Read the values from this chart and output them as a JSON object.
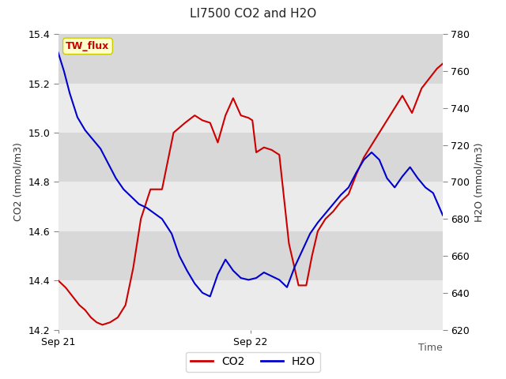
{
  "title": "LI7500 CO2 and H2O",
  "xlabel": "Time",
  "ylabel_left": "CO2 (mmol/m3)",
  "ylabel_right": "H2O (mmol/m3)",
  "co2_ylim": [
    14.2,
    15.4
  ],
  "h2o_ylim": [
    620,
    780
  ],
  "co2_yticks": [
    14.2,
    14.4,
    14.6,
    14.8,
    15.0,
    15.2,
    15.4
  ],
  "h2o_yticks": [
    620,
    640,
    660,
    680,
    700,
    720,
    740,
    760,
    780
  ],
  "xtick_positions": [
    0.0,
    0.5
  ],
  "xtick_labels": [
    "Sep 21",
    "Sep 22"
  ],
  "fig_bg_color": "#ffffff",
  "plot_bg_light": "#ebebeb",
  "plot_bg_dark": "#d8d8d8",
  "co2_color": "#cc0000",
  "h2o_color": "#0000cc",
  "legend_co2": "CO2",
  "legend_h2o": "H2O",
  "annotation_text": "TW_flux",
  "annotation_bg": "#ffffcc",
  "annotation_border": "#cccc00",
  "co2_x": [
    0.0,
    0.02,
    0.04,
    0.055,
    0.07,
    0.085,
    0.1,
    0.115,
    0.135,
    0.155,
    0.175,
    0.195,
    0.215,
    0.24,
    0.27,
    0.3,
    0.33,
    0.355,
    0.375,
    0.395,
    0.415,
    0.435,
    0.455,
    0.475,
    0.495,
    0.505,
    0.515,
    0.535,
    0.555,
    0.575,
    0.6,
    0.625,
    0.645,
    0.66,
    0.675,
    0.695,
    0.715,
    0.735,
    0.755,
    0.775,
    0.795,
    0.815,
    0.835,
    0.855,
    0.875,
    0.895,
    0.92,
    0.945,
    0.965,
    0.985,
    1.0
  ],
  "co2_y": [
    14.4,
    14.37,
    14.33,
    14.3,
    14.28,
    14.25,
    14.23,
    14.22,
    14.23,
    14.25,
    14.3,
    14.45,
    14.65,
    14.77,
    14.77,
    15.0,
    15.04,
    15.07,
    15.05,
    15.04,
    14.96,
    15.07,
    15.14,
    15.07,
    15.06,
    15.05,
    14.92,
    14.94,
    14.93,
    14.91,
    14.55,
    14.38,
    14.38,
    14.5,
    14.6,
    14.65,
    14.68,
    14.72,
    14.75,
    14.83,
    14.9,
    14.95,
    15.0,
    15.05,
    15.1,
    15.15,
    15.08,
    15.18,
    15.22,
    15.26,
    15.28
  ],
  "h2o_x": [
    0.0,
    0.015,
    0.03,
    0.05,
    0.07,
    0.09,
    0.11,
    0.13,
    0.15,
    0.17,
    0.19,
    0.21,
    0.23,
    0.25,
    0.27,
    0.295,
    0.315,
    0.335,
    0.355,
    0.375,
    0.395,
    0.415,
    0.435,
    0.455,
    0.475,
    0.495,
    0.515,
    0.535,
    0.555,
    0.575,
    0.595,
    0.615,
    0.635,
    0.655,
    0.675,
    0.695,
    0.715,
    0.735,
    0.755,
    0.775,
    0.795,
    0.815,
    0.835,
    0.855,
    0.875,
    0.895,
    0.915,
    0.935,
    0.955,
    0.975,
    1.0
  ],
  "h2o_y": [
    770,
    760,
    748,
    735,
    728,
    723,
    718,
    710,
    702,
    696,
    692,
    688,
    686,
    683,
    680,
    672,
    660,
    652,
    645,
    640,
    638,
    650,
    658,
    652,
    648,
    647,
    648,
    651,
    649,
    647,
    643,
    654,
    663,
    672,
    678,
    683,
    688,
    693,
    697,
    705,
    712,
    716,
    712,
    702,
    697,
    703,
    708,
    702,
    697,
    694,
    682
  ]
}
